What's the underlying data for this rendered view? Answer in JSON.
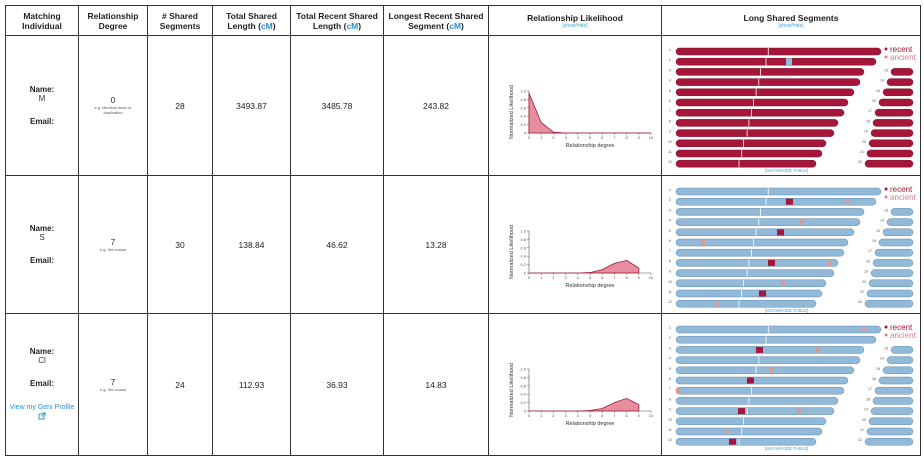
{
  "header": [
    {
      "label": "Matching Individual"
    },
    {
      "label": "Relationship Degree"
    },
    {
      "label": "# Shared Segments"
    },
    {
      "label": "Total Shared Length (",
      "unit": "cM",
      "close": ")"
    },
    {
      "label": "Total Recent Shared Length (",
      "unit": "cM",
      "close": ")"
    },
    {
      "label": "Longest Recent Shared Segment (",
      "unit": "cM",
      "close": ")"
    },
    {
      "label": "Relationship Likelihood",
      "toggle": "[show/hide]"
    },
    {
      "label": "Long Shared Segments",
      "toggle": "[show/hide]"
    }
  ],
  "likelihood_axes": {
    "ylabel": "Normalized Likelihood",
    "xlabel": "Relationship degree",
    "xlim": [
      0,
      10
    ],
    "ylim": [
      0,
      1
    ],
    "xticks": [
      0,
      1,
      2,
      3,
      4,
      5,
      6,
      7,
      8,
      9,
      10
    ],
    "yticks": [
      0,
      0.2,
      0.4,
      0.6,
      0.8,
      {
        "value": 1,
        "label": "1.0"
      }
    ],
    "color": "#e27a8c"
  },
  "segment_legend": {
    "recent": "recent",
    "ancient": "ancient"
  },
  "chromosome_labels": {
    "left": [
      1,
      2,
      3,
      4,
      5,
      6,
      7,
      8,
      9,
      10,
      11,
      12
    ],
    "right": [
      13,
      14,
      15,
      16,
      17,
      18,
      19,
      20,
      21,
      22
    ]
  },
  "rows": [
    {
      "name_label": "Name:",
      "name": "M",
      "email_label": "Email:",
      "degree": 0,
      "degree_note": "e.g. identical twins or duplication",
      "shared_segments": 28,
      "total_length": 3493.87,
      "recent_length": 3485.78,
      "longest_segment": 243.82,
      "likelihood": {
        "x": [
          0,
          1,
          2,
          3,
          4,
          5,
          6,
          7,
          8,
          9,
          10
        ],
        "values": [
          0.95,
          0.25,
          0.02,
          0,
          0,
          0,
          0,
          0,
          0,
          0,
          0
        ]
      },
      "segments_toggle": "[SHOW/HIDE TABLE]"
    },
    {
      "name_label": "Name:",
      "name": "S",
      "email_label": "Email:",
      "degree": 7,
      "degree_note": "e.g. 3rd cousin",
      "shared_segments": 30,
      "total_length": 138.84,
      "recent_length": 46.62,
      "longest_segment": 13.28,
      "likelihood": {
        "x": [
          0,
          1,
          2,
          3,
          4,
          5,
          6,
          7,
          8,
          9
        ],
        "values": [
          0,
          0,
          0,
          0,
          0,
          0.01,
          0.08,
          0.23,
          0.3,
          0.12
        ]
      },
      "segments_toggle": "[SHOW/HIDE TABLE]"
    },
    {
      "name_label": "Name:",
      "name": "Cl",
      "email_label": "Email:",
      "degree": 7,
      "degree_note": "e.g. 3rd cousin",
      "shared_segments": 24,
      "total_length": 112.93,
      "recent_length": 36.93,
      "longest_segment": 14.83,
      "likelihood": {
        "x": [
          0,
          1,
          2,
          3,
          4,
          5,
          6,
          7,
          8,
          9
        ],
        "values": [
          0,
          0,
          0,
          0,
          0,
          0.01,
          0.06,
          0.2,
          0.3,
          0.15
        ]
      },
      "profile_link": "View my Geni Profile",
      "segments_toggle": "[SHOW/HIDE TABLE]"
    }
  ]
}
